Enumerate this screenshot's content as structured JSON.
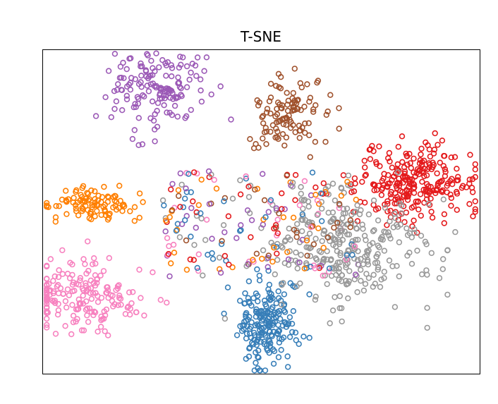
{
  "chart_data": {
    "type": "scatter",
    "title": "T-SNE",
    "xlabel": "",
    "ylabel": "",
    "axes_ticks": false,
    "grid": false,
    "legend": "none",
    "marker": "hollow-circle",
    "xlim": [
      -100,
      100
    ],
    "ylim": [
      -100,
      100
    ],
    "clusters": [
      {
        "color": "#9b59b6",
        "n": 150,
        "cx": -48,
        "cy": 75,
        "sx": 11,
        "sy": 12
      },
      {
        "color": "#a0522d",
        "n": 110,
        "cx": 11,
        "cy": 60,
        "sx": 8,
        "sy": 12
      },
      {
        "color": "#e41a1c",
        "n": 260,
        "cx": 72,
        "cy": 18,
        "sx": 14,
        "sy": 12
      },
      {
        "color": "#ff7f00",
        "n": 100,
        "cx": -78,
        "cy": 4,
        "sx": 11,
        "sy": 5
      },
      {
        "color": "#f781bf",
        "n": 180,
        "cx": -80,
        "cy": -52,
        "sx": 15,
        "sy": 11
      },
      {
        "color": "#377eb8",
        "n": 200,
        "cx": 3,
        "cy": -70,
        "sx": 7,
        "sy": 14
      },
      {
        "color": "#999999",
        "n": 280,
        "cx": 40,
        "cy": -22,
        "sx": 20,
        "sy": 18
      }
    ],
    "scatter_noise": {
      "n": 230,
      "x_range": [
        -45,
        45
      ],
      "y_range": [
        -40,
        25
      ]
    },
    "seed": 7
  }
}
